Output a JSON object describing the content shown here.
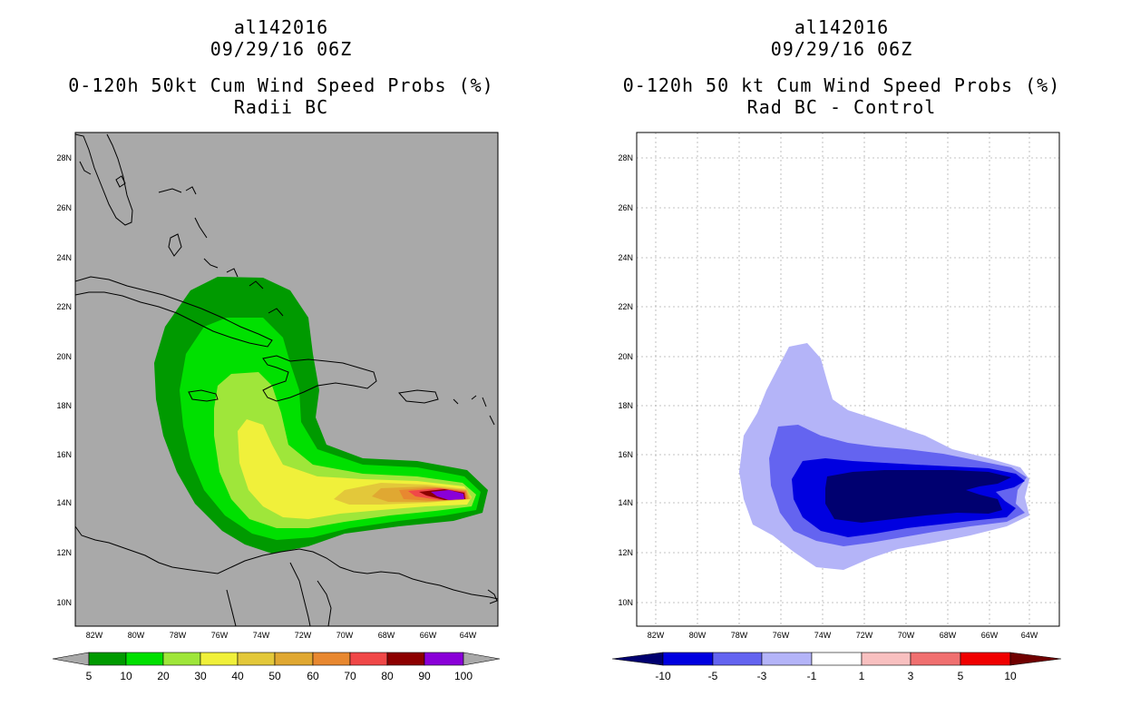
{
  "left_panel": {
    "title_line1": "al142016",
    "title_line2": "09/29/16 06Z",
    "title_line3": "0-120h 50kt Cum Wind Speed Probs (%)",
    "title_line4": "Radii BC",
    "background_color": "#a9a9a9",
    "legend": {
      "labels": [
        "5",
        "10",
        "20",
        "30",
        "40",
        "50",
        "60",
        "70",
        "80",
        "90",
        "100"
      ],
      "colors": [
        "#009a00",
        "#00e000",
        "#9fe63a",
        "#f0f03a",
        "#e3c83a",
        "#e0a832",
        "#e88830",
        "#f04848",
        "#8c0000",
        "#8a00d8"
      ],
      "end_color": "#a9a9a9"
    }
  },
  "right_panel": {
    "title_line1": "al142016",
    "title_line2": "09/29/16 06Z",
    "title_line3": "0-120h 50 kt Cum Wind Speed Probs (%)",
    "title_line4": "Rad BC - Control",
    "background_color": "#ffffff",
    "legend": {
      "labels": [
        "-10",
        "-5",
        "-3",
        "-1",
        "1",
        "3",
        "5",
        "10"
      ],
      "colors": [
        "#0000e0",
        "#6464f0",
        "#b4b4f8",
        "#ffffff",
        "#f8c0c0",
        "#f07070",
        "#f00000"
      ],
      "left_end_color": "#000070",
      "right_end_color": "#700000"
    }
  },
  "axes": {
    "lon_labels": [
      "82W",
      "80W",
      "78W",
      "76W",
      "74W",
      "72W",
      "70W",
      "68W",
      "66W",
      "64W"
    ],
    "lat_labels": [
      "28N",
      "26N",
      "24N",
      "22N",
      "20N",
      "18N",
      "16N",
      "14N",
      "12N",
      "10N"
    ]
  }
}
